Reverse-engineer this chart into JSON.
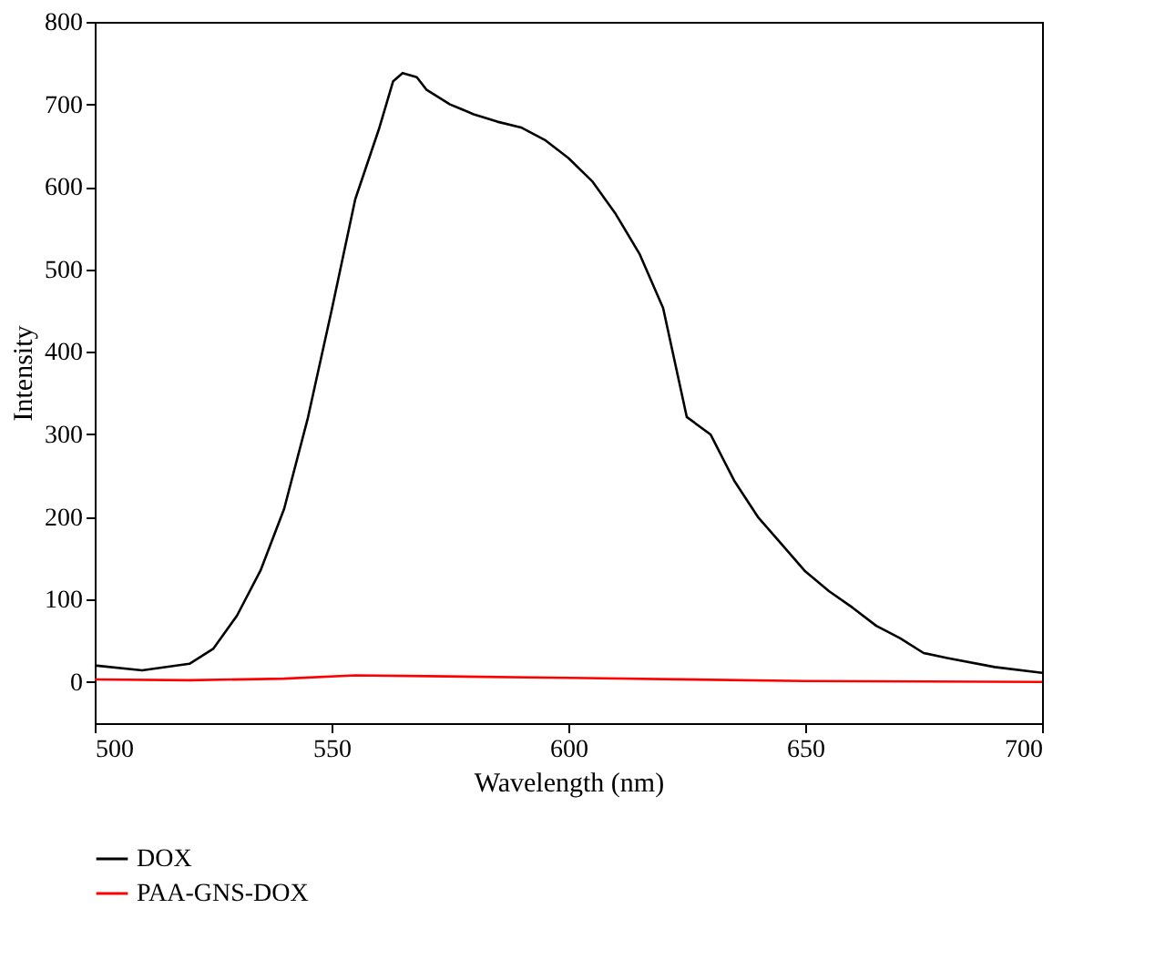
{
  "chart_data": {
    "type": "line",
    "xlabel": "Wavelength (nm)",
    "ylabel": "Intensity",
    "xlim": [
      500,
      700
    ],
    "ylim": [
      -50,
      800
    ],
    "xticks": [
      500,
      550,
      600,
      650,
      700
    ],
    "yticks": [
      0,
      100,
      200,
      300,
      400,
      500,
      600,
      700,
      800
    ],
    "grid": false,
    "legend": "bottom",
    "line_style": "solid",
    "marker": "none",
    "series": [
      {
        "name": "DOX",
        "color": "#000000",
        "x": [
          500,
          510,
          520,
          525,
          530,
          535,
          540,
          545,
          550,
          555,
          560,
          563,
          565,
          568,
          570,
          575,
          580,
          585,
          590,
          595,
          600,
          605,
          610,
          615,
          620,
          625,
          630,
          635,
          640,
          645,
          650,
          655,
          660,
          665,
          670,
          675,
          680,
          690,
          700
        ],
        "values": [
          20,
          14,
          22,
          40,
          80,
          135,
          210,
          320,
          450,
          585,
          670,
          728,
          738,
          733,
          718,
          700,
          688,
          679,
          672,
          657,
          635,
          607,
          567,
          519,
          453,
          321,
          300,
          244,
          200,
          167,
          134,
          110,
          90,
          68,
          53,
          35,
          29,
          18,
          11
        ]
      },
      {
        "name": "PAA-GNS-DOX",
        "color": "#ff0000",
        "x": [
          500,
          520,
          540,
          555,
          570,
          600,
          650,
          700
        ],
        "values": [
          3,
          2,
          4,
          8,
          7,
          5,
          1,
          0
        ]
      }
    ]
  }
}
